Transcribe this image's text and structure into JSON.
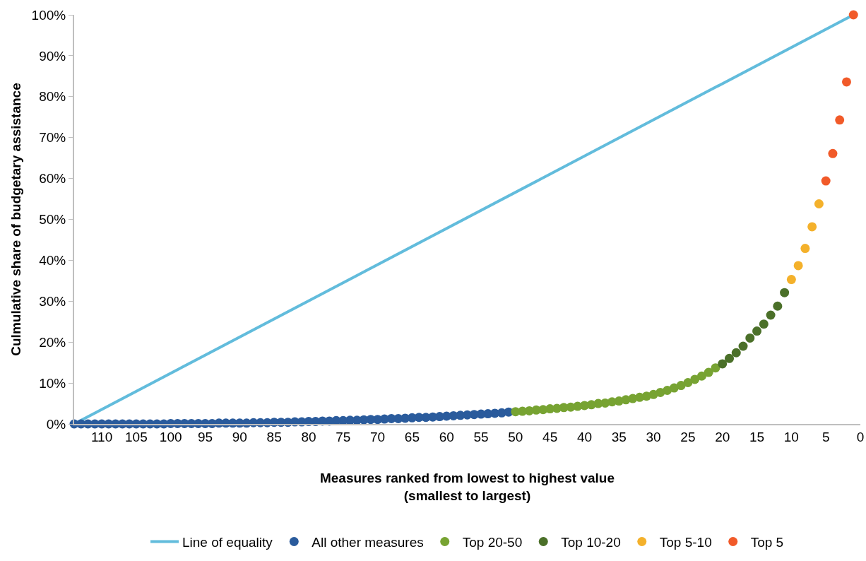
{
  "chart_data": {
    "type": "scatter",
    "xlabel": "Measures ranked from lowest to highest value\n(smallest to largest)",
    "ylabel": "Culmulative share of budgetary assistance",
    "xlim": [
      114,
      0
    ],
    "xticks": [
      110,
      105,
      100,
      95,
      90,
      85,
      80,
      75,
      70,
      65,
      60,
      55,
      50,
      45,
      40,
      35,
      30,
      25,
      20,
      15,
      10,
      5,
      0
    ],
    "ylim": [
      0,
      100
    ],
    "yticks": [
      {
        "value": 0,
        "label": "0%"
      },
      {
        "value": 10,
        "label": "10%"
      },
      {
        "value": 20,
        "label": "20%"
      },
      {
        "value": 30,
        "label": "30%"
      },
      {
        "value": 40,
        "label": "40%"
      },
      {
        "value": 50,
        "label": "50%"
      },
      {
        "value": 60,
        "label": "60%"
      },
      {
        "value": 70,
        "label": "70%"
      },
      {
        "value": 80,
        "label": "80%"
      },
      {
        "value": 90,
        "label": "90%"
      },
      {
        "value": 100,
        "label": "100%"
      }
    ],
    "legend": "bottom",
    "marker": "circle",
    "series": [
      {
        "name": "Line of equality",
        "type": "line",
        "line_style": "solid",
        "marker": "none",
        "color": "#62bcdc",
        "x": [
          114,
          1
        ],
        "values": [
          0,
          100
        ]
      },
      {
        "name": "All other measures",
        "color": "#2a5b9c",
        "x": [
          51,
          52,
          53,
          54,
          55,
          56,
          57,
          58,
          59,
          60,
          61,
          62,
          63,
          64,
          65,
          66,
          67,
          68,
          69,
          70,
          71,
          72,
          73,
          74,
          75,
          76,
          77,
          78,
          79,
          80,
          81,
          82,
          83,
          84,
          85,
          86,
          87,
          88,
          89,
          90,
          91,
          92,
          93,
          94,
          95,
          96,
          97,
          98,
          99,
          100,
          101,
          102,
          103,
          104,
          105,
          106,
          107,
          108,
          109,
          110,
          111,
          112,
          113,
          114
        ],
        "values": [
          2.9,
          2.7,
          2.6,
          2.5,
          2.4,
          2.3,
          2.2,
          2.1,
          2.0,
          1.9,
          1.8,
          1.7,
          1.6,
          1.6,
          1.5,
          1.4,
          1.3,
          1.3,
          1.2,
          1.1,
          1.1,
          1.0,
          0.9,
          0.9,
          0.8,
          0.8,
          0.7,
          0.7,
          0.6,
          0.6,
          0.5,
          0.5,
          0.4,
          0.4,
          0.4,
          0.3,
          0.3,
          0.3,
          0.2,
          0.2,
          0.2,
          0.2,
          0.2,
          0.1,
          0.1,
          0.1,
          0.1,
          0.1,
          0.1,
          0.1,
          0,
          0,
          0,
          0,
          0,
          0,
          0,
          0,
          0,
          0,
          0,
          0,
          0,
          0
        ]
      },
      {
        "name": "Top 20-50",
        "color": "#77a332",
        "x": [
          21,
          22,
          23,
          24,
          25,
          26,
          27,
          28,
          29,
          30,
          31,
          32,
          33,
          34,
          35,
          36,
          37,
          38,
          39,
          40,
          41,
          42,
          43,
          44,
          45,
          46,
          47,
          48,
          49,
          50
        ],
        "values": [
          13.7,
          12.6,
          11.7,
          10.9,
          10.1,
          9.4,
          8.8,
          8.2,
          7.7,
          7.2,
          6.8,
          6.5,
          6.2,
          5.9,
          5.6,
          5.4,
          5.1,
          5.0,
          4.7,
          4.5,
          4.3,
          4.1,
          4.0,
          3.8,
          3.7,
          3.5,
          3.4,
          3.2,
          3.1,
          3.0
        ]
      },
      {
        "name": "Top 10-20",
        "color": "#4b7029",
        "x": [
          11,
          12,
          13,
          14,
          15,
          16,
          17,
          18,
          19,
          20
        ],
        "values": [
          32.1,
          28.8,
          26.6,
          24.4,
          22.7,
          21.0,
          19.0,
          17.4,
          16.0,
          14.7
        ]
      },
      {
        "name": "Top 5-10",
        "color": "#f4b12b",
        "x": [
          6,
          7,
          8,
          9,
          10
        ],
        "values": [
          53.8,
          48.2,
          42.9,
          38.7,
          35.3
        ]
      },
      {
        "name": "Top 5",
        "color": "#f15a29",
        "x": [
          1,
          2,
          3,
          4,
          5
        ],
        "values": [
          100,
          83.6,
          74.3,
          66.1,
          59.4
        ]
      }
    ]
  }
}
